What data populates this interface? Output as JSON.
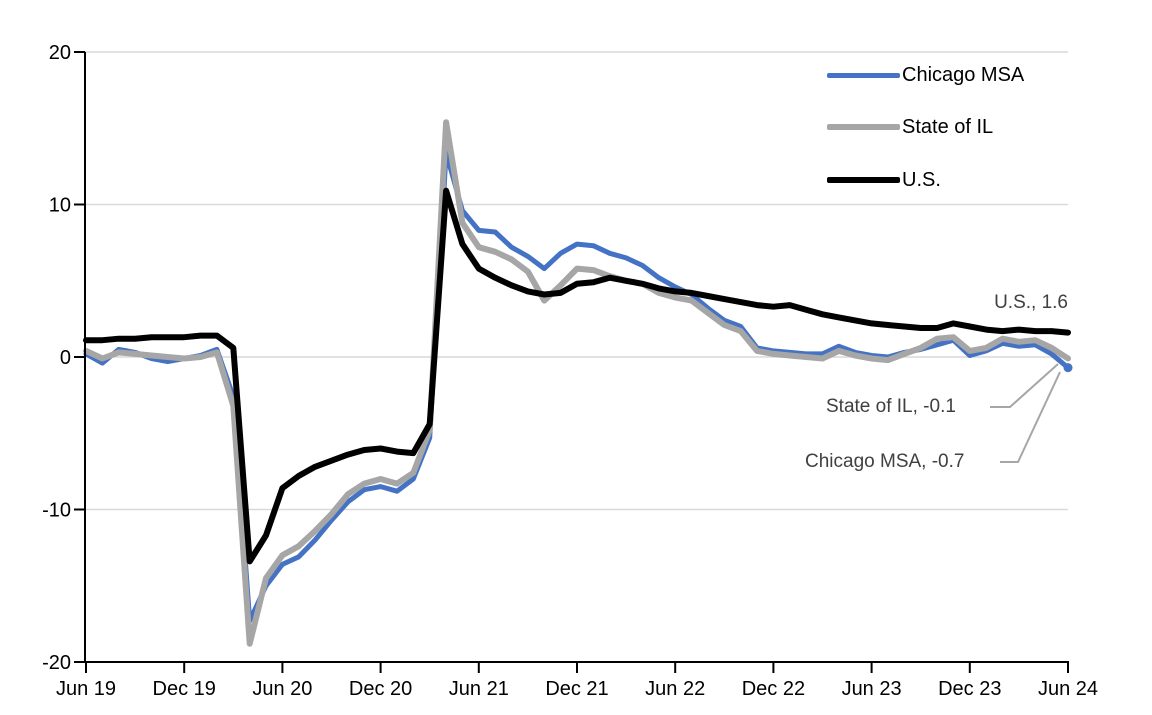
{
  "chart_data": {
    "type": "line",
    "title": "",
    "xlabel": "",
    "ylabel": "",
    "ylim": [
      -20,
      20
    ],
    "grid": true,
    "grid_color": "#d9d9d9",
    "axis_color": "#000000",
    "x_tick_labels": [
      "Jun 19",
      "Dec 19",
      "Jun 20",
      "Dec 20",
      "Jun 21",
      "Dec 21",
      "Jun 22",
      "Dec 22",
      "Jun 23",
      "Dec 23",
      "Jun 24"
    ],
    "y_ticks": [
      20,
      10,
      0,
      -10,
      -20
    ],
    "x_unit": "month",
    "x_range_months": 61,
    "legend_position": "top-right",
    "series": [
      {
        "name": "Chicago MSA",
        "color": "#4472c4",
        "stroke_width": 5,
        "end_marker": true,
        "values": [
          0.2,
          -0.4,
          0.5,
          0.3,
          -0.1,
          -0.3,
          -0.1,
          0.1,
          0.5,
          -2.6,
          -17.3,
          -15.0,
          -13.6,
          -13.1,
          -12.0,
          -10.7,
          -9.5,
          -8.7,
          -8.5,
          -8.8,
          -8.0,
          -5.3,
          13.4,
          9.6,
          8.3,
          8.2,
          7.2,
          6.6,
          5.8,
          6.8,
          7.4,
          7.3,
          6.8,
          6.5,
          6.0,
          5.2,
          4.6,
          4.1,
          3.2,
          2.4,
          2.0,
          0.6,
          0.4,
          0.3,
          0.2,
          0.2,
          0.7,
          0.3,
          0.1,
          0.0,
          0.3,
          0.5,
          0.8,
          1.1,
          0.1,
          0.4,
          0.9,
          0.7,
          0.8,
          0.2,
          -0.7
        ]
      },
      {
        "name": "State of IL",
        "color": "#a6a6a6",
        "stroke_width": 6,
        "end_marker": false,
        "values": [
          0.4,
          -0.1,
          0.3,
          0.2,
          0.1,
          0.0,
          -0.1,
          0.0,
          0.3,
          -3.2,
          -18.8,
          -14.5,
          -13.0,
          -12.4,
          -11.4,
          -10.3,
          -9.0,
          -8.3,
          -8.0,
          -8.3,
          -7.6,
          -4.8,
          15.4,
          8.8,
          7.2,
          6.9,
          6.4,
          5.6,
          3.7,
          4.7,
          5.8,
          5.7,
          5.3,
          5.0,
          4.8,
          4.2,
          3.9,
          3.7,
          2.9,
          2.1,
          1.7,
          0.4,
          0.2,
          0.1,
          0.0,
          -0.1,
          0.4,
          0.1,
          -0.1,
          -0.2,
          0.2,
          0.6,
          1.2,
          1.3,
          0.4,
          0.6,
          1.2,
          1.0,
          1.1,
          0.6,
          -0.1
        ]
      },
      {
        "name": "U.S.",
        "color": "#000000",
        "stroke_width": 6,
        "end_marker": false,
        "values": [
          1.1,
          1.1,
          1.2,
          1.2,
          1.3,
          1.3,
          1.3,
          1.4,
          1.4,
          0.6,
          -13.4,
          -11.7,
          -8.6,
          -7.8,
          -7.2,
          -6.8,
          -6.4,
          -6.1,
          -6.0,
          -6.2,
          -6.3,
          -4.4,
          10.9,
          7.4,
          5.8,
          5.2,
          4.7,
          4.3,
          4.1,
          4.2,
          4.8,
          4.9,
          5.2,
          5.0,
          4.8,
          4.5,
          4.3,
          4.2,
          4.0,
          3.8,
          3.6,
          3.4,
          3.3,
          3.4,
          3.1,
          2.8,
          2.6,
          2.4,
          2.2,
          2.1,
          2.0,
          1.9,
          1.9,
          2.2,
          2.0,
          1.8,
          1.7,
          1.8,
          1.7,
          1.7,
          1.6
        ]
      }
    ],
    "annotations": [
      {
        "text": "U.S., 1.6",
        "series": "U.S.",
        "value": 1.6
      },
      {
        "text": "State of IL, -0.1",
        "series": "State of IL",
        "value": -0.1
      },
      {
        "text": "Chicago MSA, -0.7",
        "series": "Chicago MSA",
        "value": -0.7
      }
    ],
    "leader_line_color": "#a6a6a6"
  }
}
